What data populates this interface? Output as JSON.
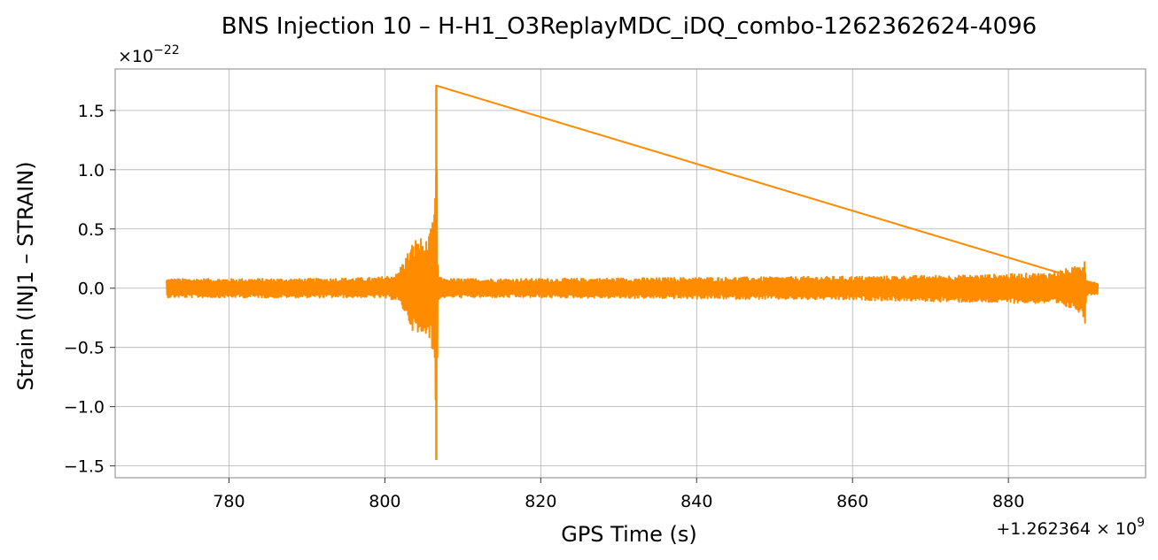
{
  "chart_data": {
    "type": "line",
    "title": "BNS Injection 10 – H-H1_O3ReplayMDC_iDQ_combo-1262362624-4096",
    "xlabel": "GPS Time (s)",
    "ylabel": "Strain (INJ1 – STRAIN)",
    "x_offset_label": {
      "prefix": "+1.262364",
      "times": "×",
      "base": "10",
      "exp": "9"
    },
    "y_scale_label": {
      "times": "×",
      "base": "10",
      "exp": "−22"
    },
    "xlim": [
      765.4,
      897.6
    ],
    "ylim": [
      -1.6,
      1.85
    ],
    "x_ticks": [
      780,
      800,
      820,
      840,
      860,
      880
    ],
    "x_tick_labels": [
      "780",
      "800",
      "820",
      "840",
      "860",
      "880"
    ],
    "y_ticks": [
      -1.5,
      -1.0,
      -0.5,
      0.0,
      0.5,
      1.0,
      1.5
    ],
    "y_tick_labels": [
      "−1.5",
      "−1.0",
      "−0.5",
      "0.0",
      "0.5",
      "1.0",
      "1.5"
    ],
    "grid": true,
    "color": "#ff8c00",
    "x_range": [
      772.0,
      891.5
    ],
    "envelope": [
      {
        "x": 772.0,
        "upper": 0.08,
        "lower": -0.08
      },
      {
        "x": 780.0,
        "upper": 0.08,
        "lower": -0.08
      },
      {
        "x": 790.0,
        "upper": 0.08,
        "lower": -0.08
      },
      {
        "x": 799.0,
        "upper": 0.09,
        "lower": -0.08
      },
      {
        "x": 801.5,
        "upper": 0.12,
        "lower": -0.1
      },
      {
        "x": 802.5,
        "upper": 0.25,
        "lower": -0.2
      },
      {
        "x": 803.5,
        "upper": 0.38,
        "lower": -0.35
      },
      {
        "x": 804.3,
        "upper": 0.45,
        "lower": -0.45
      },
      {
        "x": 805.0,
        "upper": 0.4,
        "lower": -0.38
      },
      {
        "x": 805.6,
        "upper": 0.42,
        "lower": -0.38
      },
      {
        "x": 806.1,
        "upper": 0.58,
        "lower": -0.58
      },
      {
        "x": 806.4,
        "upper": 0.64,
        "lower": -0.7
      },
      {
        "x": 806.6,
        "upper": 1.71,
        "lower": -1.45
      },
      {
        "x": 806.8,
        "upper": 0.1,
        "lower": -0.1
      },
      {
        "x": 807.5,
        "upper": 0.08,
        "lower": -0.08
      },
      {
        "x": 820.0,
        "upper": 0.08,
        "lower": -0.08
      },
      {
        "x": 840.0,
        "upper": 0.09,
        "lower": -0.09
      },
      {
        "x": 860.0,
        "upper": 0.1,
        "lower": -0.1
      },
      {
        "x": 875.0,
        "upper": 0.11,
        "lower": -0.12
      },
      {
        "x": 885.0,
        "upper": 0.13,
        "lower": -0.13
      },
      {
        "x": 888.5,
        "upper": 0.18,
        "lower": -0.18
      },
      {
        "x": 889.5,
        "upper": 0.22,
        "lower": -0.22
      },
      {
        "x": 889.8,
        "upper": 0.32,
        "lower": -0.36
      },
      {
        "x": 890.0,
        "upper": 0.06,
        "lower": -0.06
      },
      {
        "x": 891.5,
        "upper": 0.05,
        "lower": -0.05
      }
    ]
  }
}
